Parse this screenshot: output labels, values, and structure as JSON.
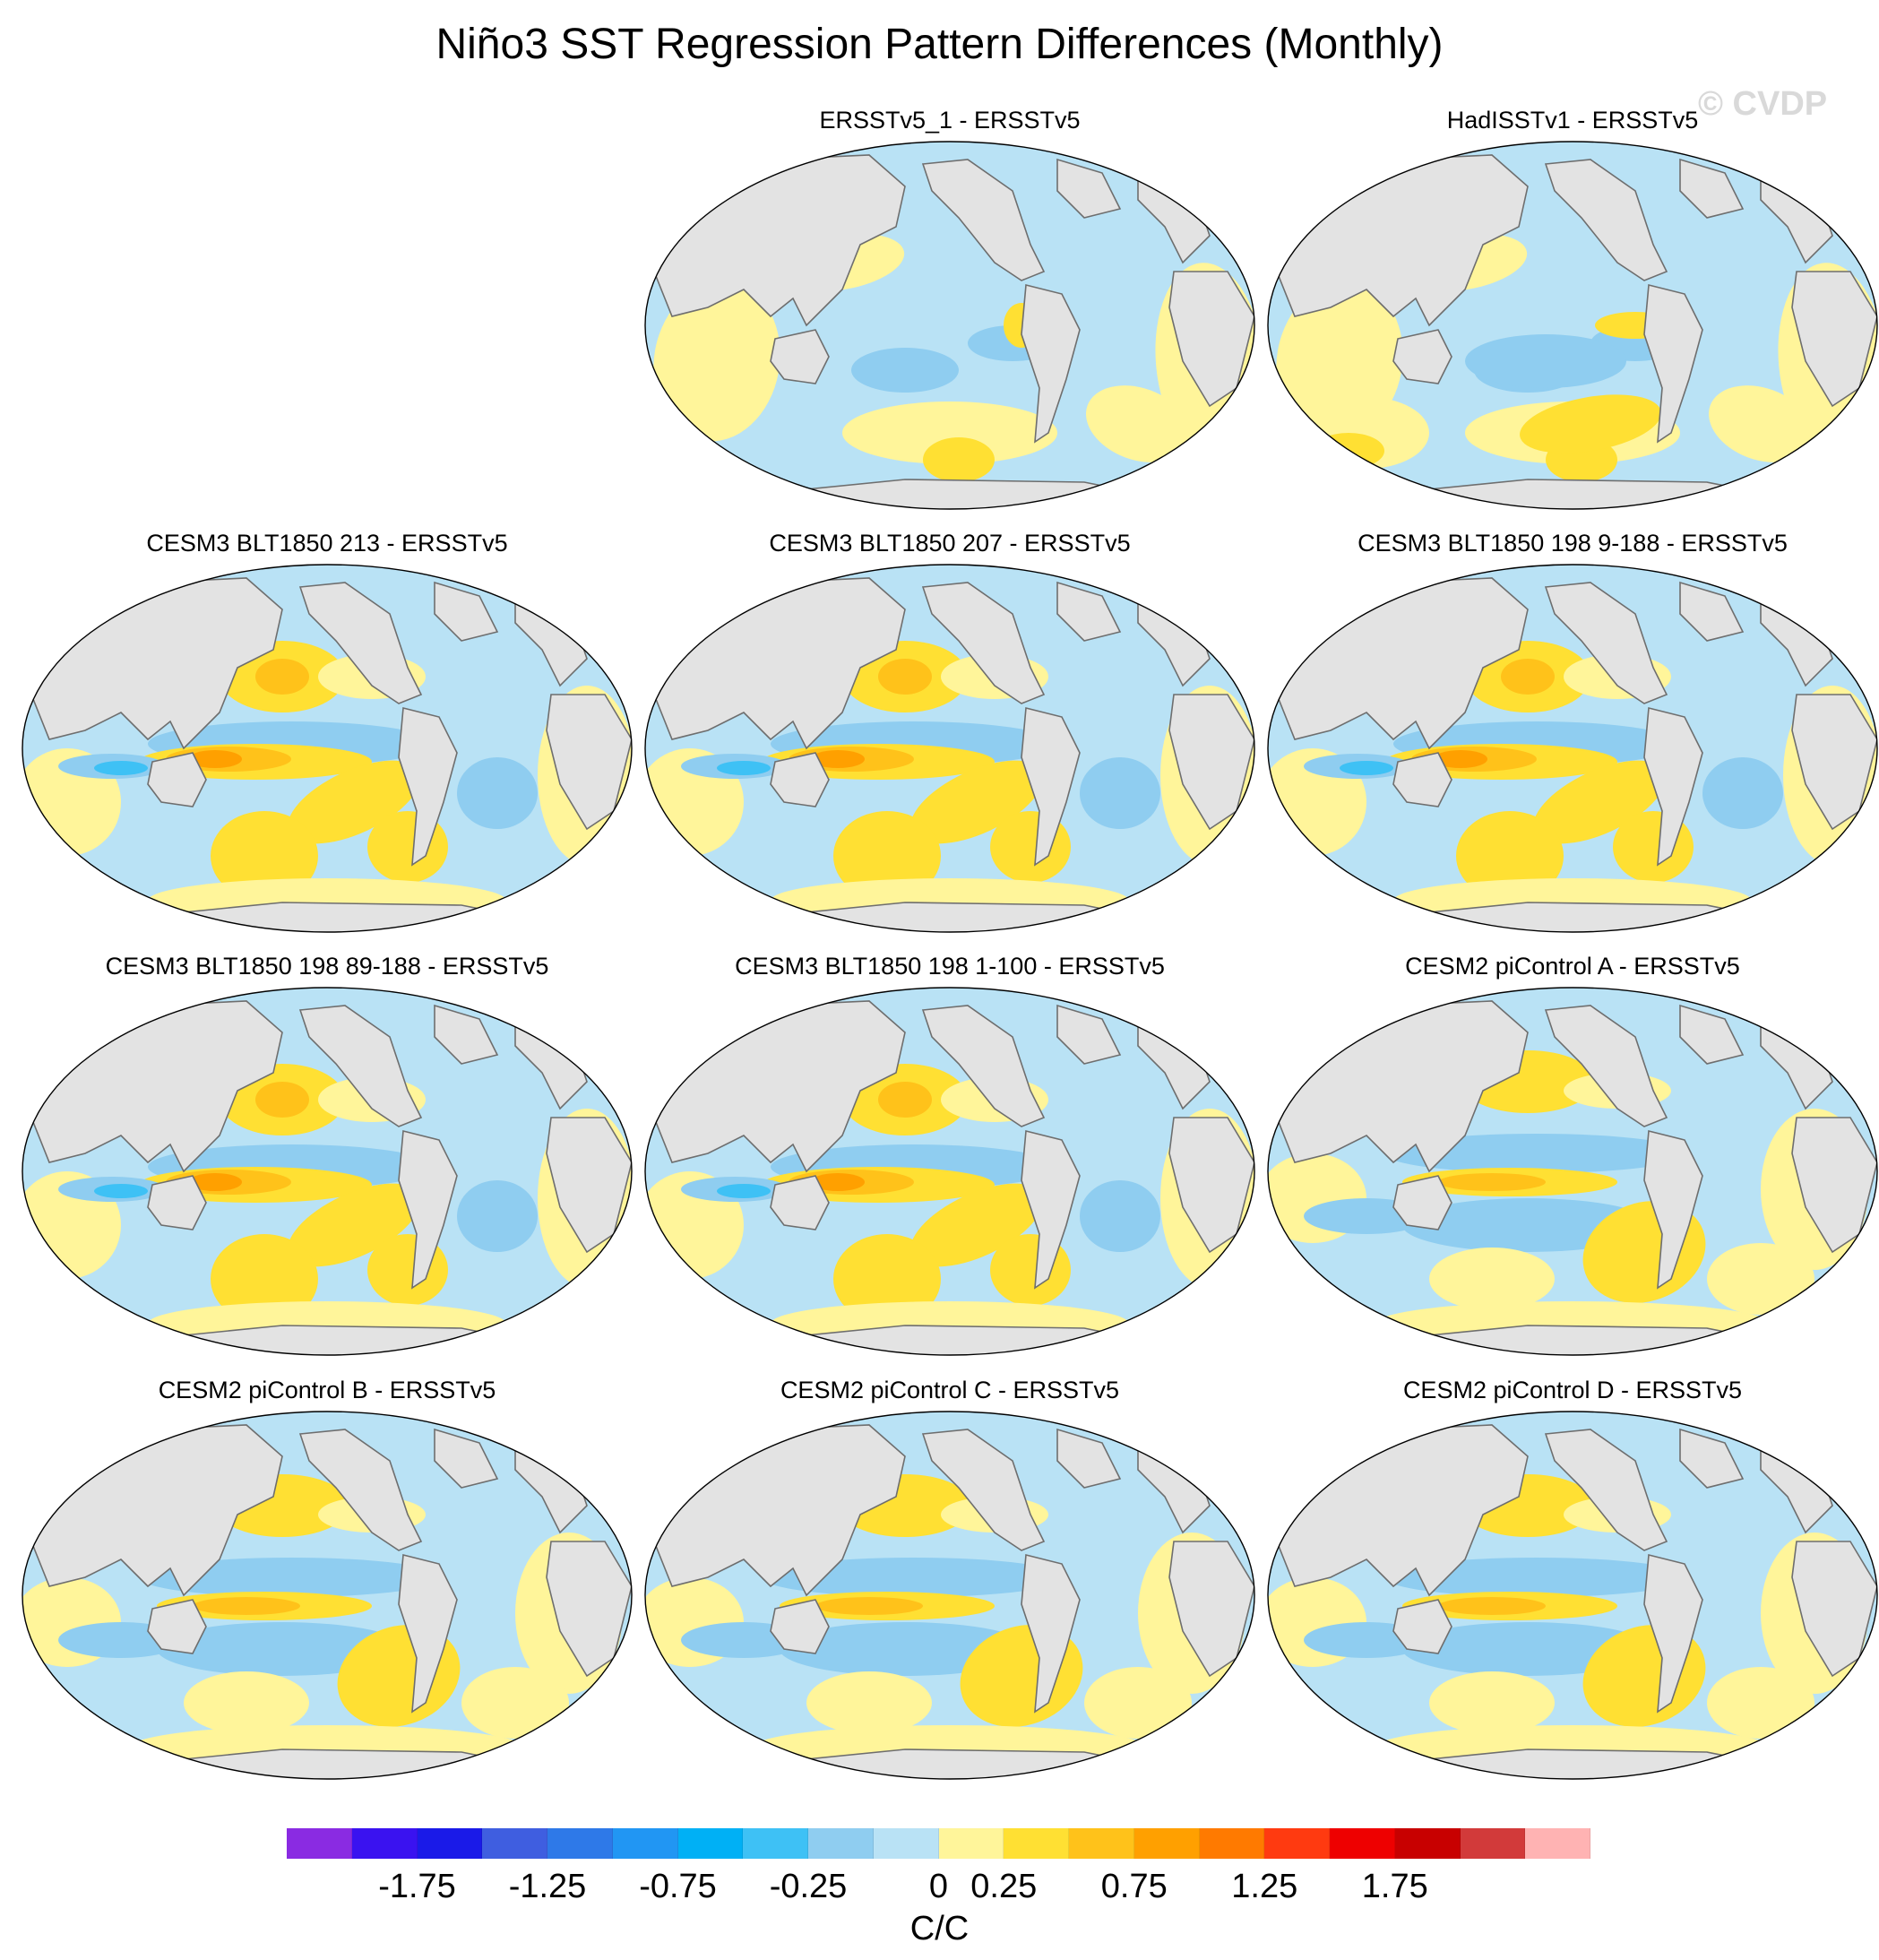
{
  "figure": {
    "title": "Niño3 SST Regression Pattern Differences (Monthly)",
    "watermark": "© CVDP"
  },
  "panels": [
    {
      "title": "ERSSTv5_1 - ERSSTv5",
      "style": "obs1"
    },
    {
      "title": "HadISSTv1 - ERSSTv5",
      "style": "obs2"
    },
    {
      "title": "CESM3 BLT1850 213 - ERSSTv5",
      "style": "cesm3"
    },
    {
      "title": "CESM3 BLT1850 207 - ERSSTv5",
      "style": "cesm3"
    },
    {
      "title": "CESM3 BLT1850 198 9-188 - ERSSTv5",
      "style": "cesm3"
    },
    {
      "title": "CESM3 BLT1850 198 89-188 - ERSSTv5",
      "style": "cesm3"
    },
    {
      "title": "CESM3 BLT1850 198 1-100 - ERSSTv5",
      "style": "cesm3"
    },
    {
      "title": "CESM2 piControl A - ERSSTv5",
      "style": "cesm2"
    },
    {
      "title": "CESM2 piControl B - ERSSTv5",
      "style": "cesm2"
    },
    {
      "title": "CESM2 piControl C - ERSSTv5",
      "style": "cesm2"
    },
    {
      "title": "CESM2 piControl D - ERSSTv5",
      "style": "cesm2"
    }
  ],
  "colorbar": {
    "units": "C/C",
    "labels": [
      "-1.75",
      "-1.25",
      "-0.75",
      "-0.25",
      "0",
      "0.25",
      "0.75",
      "1.25",
      "1.75"
    ],
    "colors": [
      "#8a2be2",
      "#3a12f0",
      "#1a1ae8",
      "#3f5ee0",
      "#2e79e8",
      "#2196f3",
      "#00b0f5",
      "#3ec1f5",
      "#8fcdf0",
      "#b9e2f5",
      "#fff59a",
      "#ffe033",
      "#ffc21a",
      "#ffa000",
      "#ff7a00",
      "#ff3a10",
      "#ee0000",
      "#c80000",
      "#d23a3a",
      "#ffb3b3"
    ]
  },
  "map_colors": {
    "land": "#e3e3e3",
    "coast": "#6e6e6e",
    "neutral_neg": "#b9e2f5",
    "neg": "#8fcdf0",
    "neg_strong": "#3ec1f5",
    "pos": "#fff59a",
    "pos_mid": "#ffe033",
    "pos_strong": "#ffc21a",
    "pos_peak": "#ffa000"
  }
}
